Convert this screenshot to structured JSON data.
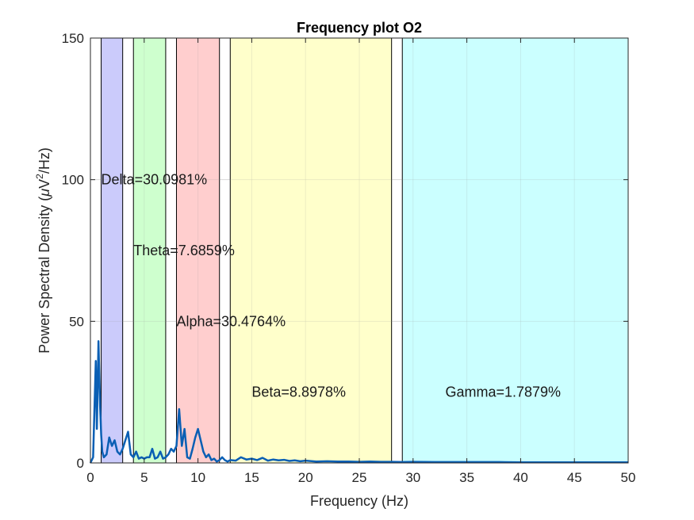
{
  "chart_data": {
    "type": "line",
    "title": "Frequency plot O2",
    "xlabel": "Frequency (Hz)",
    "ylabel_parts": {
      "pre": "Power Spectral Density (",
      "mu": "μ",
      "v": "V",
      "sup": "2",
      "post": "/Hz)"
    },
    "xlim": [
      0,
      50
    ],
    "ylim": [
      0,
      150
    ],
    "xticks": [
      0,
      5,
      10,
      15,
      20,
      25,
      30,
      35,
      40,
      45,
      50
    ],
    "yticks": [
      0,
      50,
      100,
      150
    ],
    "grid": true,
    "colors": {
      "line": "#0a5fb4",
      "line_alt": "#1a7f7a",
      "axes": "#262626",
      "grid": "#e6e6e6"
    },
    "bands": [
      {
        "name": "Delta",
        "label": "Delta=30.0981%",
        "start": 1,
        "end": 3,
        "color": "#c8c8fb",
        "label_x": 1,
        "label_y": 100
      },
      {
        "name": "Theta",
        "label": "Theta=7.6859%",
        "start": 4,
        "end": 7,
        "color": "#cbffcb",
        "label_x": 4,
        "label_y": 75
      },
      {
        "name": "Alpha",
        "label": "Alpha=30.4764%",
        "start": 8,
        "end": 12,
        "color": "#ffcbcb",
        "label_x": 8,
        "label_y": 50
      },
      {
        "name": "Beta",
        "label": "Beta=8.8978%",
        "start": 13,
        "end": 28,
        "color": "#ffffc8",
        "label_x": 15,
        "label_y": 25
      },
      {
        "name": "Gamma",
        "label": "Gamma=1.7879%",
        "start": 29,
        "end": 50,
        "color": "#c8ffff",
        "label_x": 33,
        "label_y": 25
      }
    ],
    "series": [
      {
        "x": [
          0,
          0.25,
          0.5,
          0.6,
          0.75,
          0.9,
          1.0,
          1.1,
          1.25,
          1.5,
          1.75,
          2.0,
          2.25,
          2.5,
          2.75,
          3.0,
          3.25,
          3.5,
          3.75,
          4.0,
          4.25,
          4.5,
          4.75,
          5.0,
          5.25,
          5.5,
          5.75,
          6.0,
          6.25,
          6.5,
          6.75,
          7.0,
          7.25,
          7.5,
          7.75,
          8.0,
          8.25,
          8.5,
          8.75,
          9.0,
          9.25,
          9.5,
          9.75,
          10.0,
          10.25,
          10.5,
          10.75,
          11.0,
          11.25,
          11.5,
          11.75,
          12.0,
          12.25,
          12.5,
          12.75,
          13.0,
          13.5,
          14.0,
          14.5,
          15.0,
          15.5,
          16.0,
          16.5,
          17.0,
          17.5,
          18.0,
          18.5,
          19.0,
          19.5,
          20.0,
          21,
          22,
          23,
          24,
          25,
          26,
          27,
          28,
          29,
          30,
          32,
          34,
          36,
          38,
          40,
          42,
          44,
          46,
          48,
          50
        ],
        "y": [
          0,
          2,
          36,
          12,
          43,
          20,
          10,
          4,
          2,
          3,
          9,
          6,
          8,
          4,
          3,
          5,
          8,
          11,
          3,
          2,
          4,
          1.5,
          2,
          1.5,
          2,
          2,
          5,
          1.5,
          2,
          4,
          1.5,
          2,
          3,
          5,
          4,
          6,
          19,
          6,
          12,
          2,
          1.5,
          5,
          9,
          12,
          8,
          4,
          2,
          3,
          1,
          1.5,
          0.5,
          1,
          2,
          1,
          0.5,
          1,
          0.8,
          2,
          1.2,
          1.5,
          1.0,
          1.8,
          0.8,
          1.2,
          0.9,
          1.1,
          0.7,
          0.9,
          0.6,
          0.8,
          0.5,
          0.6,
          0.5,
          0.5,
          0.4,
          0.5,
          0.4,
          0.4,
          0.3,
          0.4,
          0.3,
          0.3,
          0.3,
          0.3,
          0.2,
          0.2,
          0.2,
          0.2,
          0.2,
          0.2
        ]
      }
    ]
  }
}
